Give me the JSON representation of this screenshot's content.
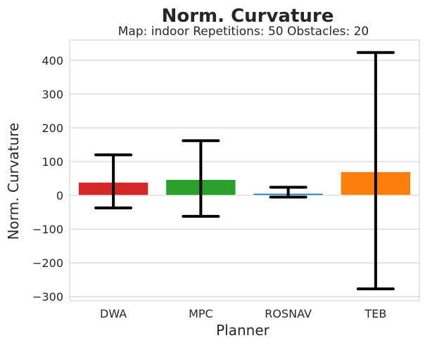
{
  "chart_data": {
    "type": "bar",
    "title": "Norm. Curvature",
    "subtitle": "Map: indoor Repetitions: 50 Obstacles: 20",
    "xlabel": "Planner",
    "ylabel": "Norm. Curvature",
    "categories": [
      "DWA",
      "MPC",
      "ROSNAV",
      "TEB"
    ],
    "values": [
      39,
      47,
      6,
      70
    ],
    "error_low": [
      -37,
      -62,
      -5,
      -277
    ],
    "error_high": [
      120,
      162,
      24,
      423
    ],
    "colors": [
      "#d62728",
      "#2ca02c",
      "#1f77b4",
      "#ff7f0e"
    ],
    "error_bar_color": "#000000",
    "ylim": [
      -312,
      460
    ],
    "yticks": [
      -300,
      -200,
      -100,
      0,
      100,
      200,
      300,
      400
    ],
    "ytick_labels": [
      "−300",
      "−200",
      "−100",
      "0",
      "100",
      "200",
      "300",
      "400"
    ],
    "grid": "horizontal",
    "legend": "none"
  }
}
